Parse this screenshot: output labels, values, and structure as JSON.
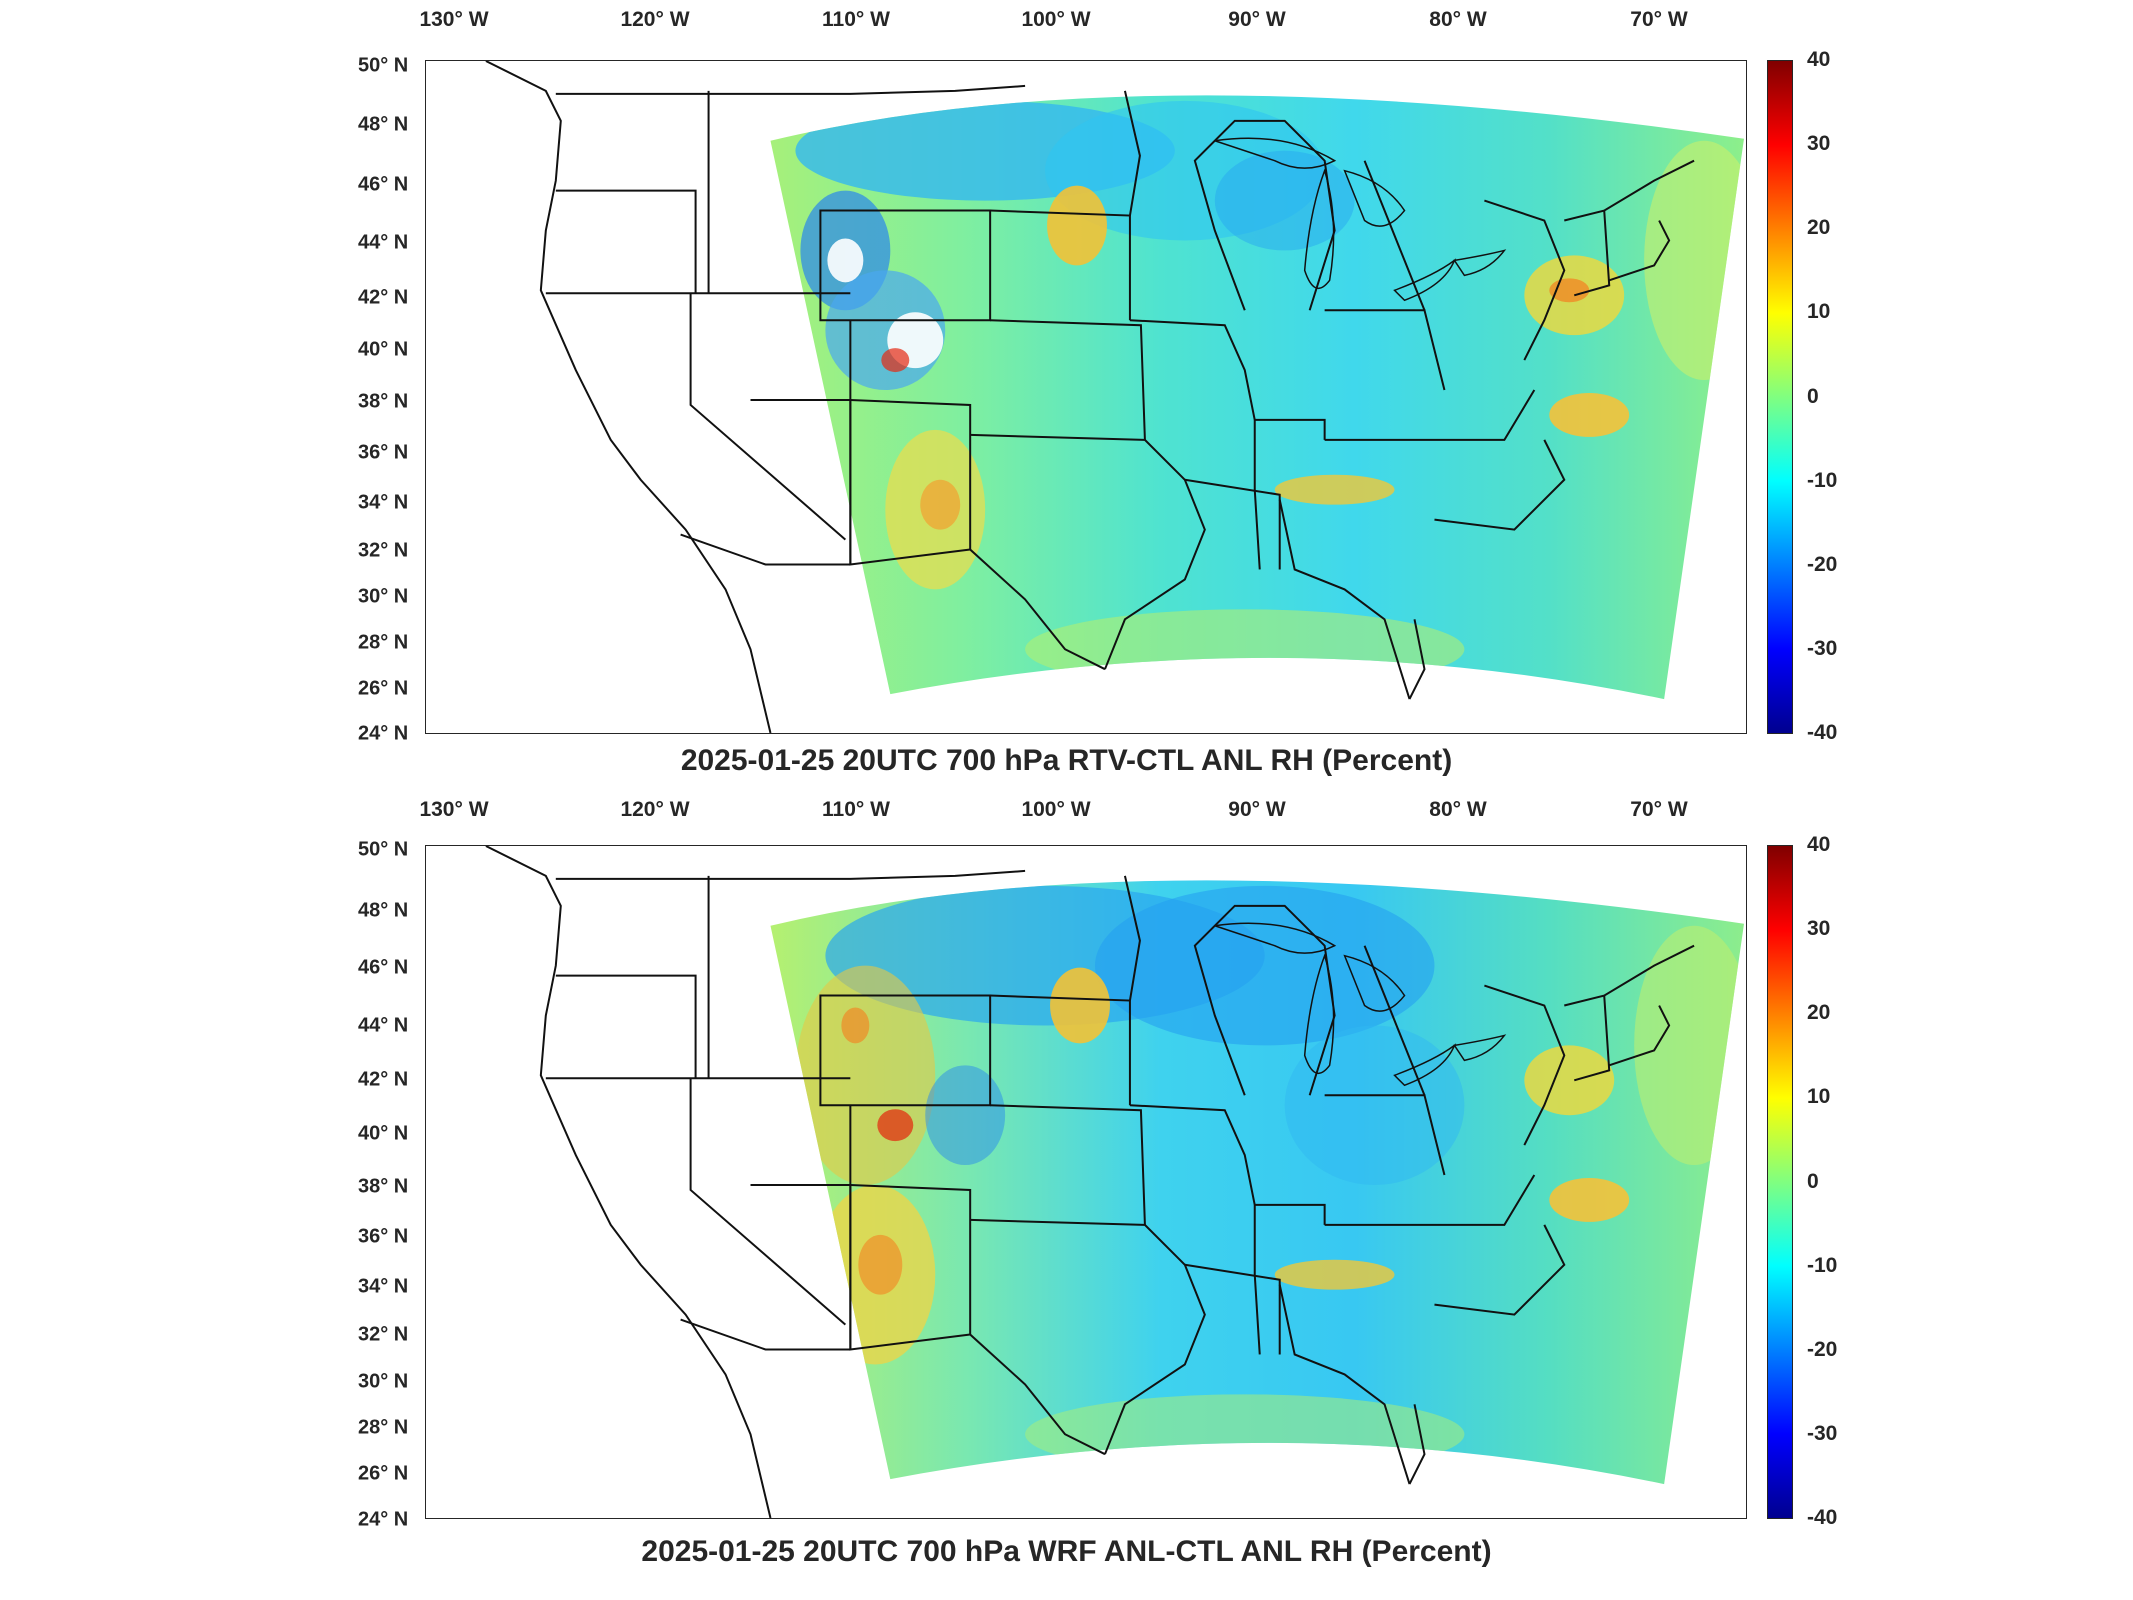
{
  "figure": {
    "panels": [
      {
        "title": "2025-01-25 20UTC 700 hPa RTV-CTL ANL RH (Percent)"
      },
      {
        "title": "2025-01-25 20UTC 700 hPa WRF ANL-CTL ANL RH (Percent)"
      }
    ],
    "lon_labels": [
      "130° W",
      "120° W",
      "110° W",
      "100° W",
      "90° W",
      "80° W",
      "70° W"
    ],
    "lat_labels": [
      "50° N",
      "48° N",
      "46° N",
      "44° N",
      "42° N",
      "40° N",
      "38° N",
      "36° N",
      "34° N",
      "32° N",
      "30° N",
      "28° N",
      "26° N",
      "24° N"
    ],
    "colorbar": {
      "ticks": [
        "40",
        "30",
        "20",
        "10",
        "0",
        "-10",
        "-20",
        "-30",
        "-40"
      ],
      "range": [
        -40,
        40
      ],
      "colormap": "jet",
      "colors": [
        "#00008f",
        "#0000ff",
        "#0080ff",
        "#00ffff",
        "#80ff80",
        "#ffff00",
        "#ff8000",
        "#ff0000",
        "#800000"
      ]
    }
  }
}
